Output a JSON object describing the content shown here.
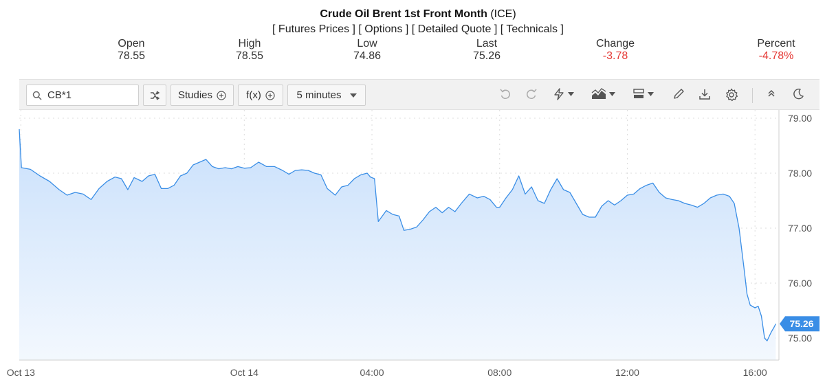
{
  "header": {
    "title": "Crude Oil Brent 1st Front Month",
    "exchange": "(ICE)",
    "links": [
      "[ Futures Prices ]",
      "[ Options ]",
      "[ Detailed Quote ]",
      "[ Technicals ]"
    ]
  },
  "quote": {
    "open_label": "Open",
    "open": "78.55",
    "high_label": "High",
    "high": "78.55",
    "low_label": "Low",
    "low": "74.86",
    "last_label": "Last",
    "last": "75.26",
    "change_label": "Change",
    "change": "-3.78",
    "percent_label": "Percent",
    "percent": "-4.78%"
  },
  "toolbar": {
    "symbol": "CB*1",
    "studies_label": "Studies",
    "fx_label": "f(x)",
    "interval_label": "5 minutes"
  },
  "colors": {
    "line": "#3a8ee6",
    "fill_top": "#c9e0fb",
    "fill_bottom": "#f3f8fe",
    "negative": "#e53935",
    "last_badge": "#3a8ee6"
  },
  "chart_data": {
    "type": "area",
    "title": "",
    "xlabel": "",
    "ylabel": "",
    "ylim": [
      74.6,
      79.15
    ],
    "yticks": [
      "79.00",
      "78.00",
      "77.00",
      "76.00",
      "75.00"
    ],
    "ytick_values": [
      79,
      78,
      77,
      76,
      75
    ],
    "x_ticks": [
      "Oct 13",
      "Oct 14",
      "04:00",
      "08:00",
      "12:00",
      "16:00"
    ],
    "x_tick_hours": [
      -7.0,
      0.0,
      4.0,
      8.0,
      12.0,
      16.0
    ],
    "x_range_hours": [
      -7.05,
      16.75
    ],
    "last_value": "75.26",
    "series": [
      {
        "name": "",
        "points": [
          [
            -7.05,
            78.8
          ],
          [
            -6.98,
            78.1
          ],
          [
            -6.7,
            78.07
          ],
          [
            -6.4,
            77.95
          ],
          [
            -6.1,
            77.85
          ],
          [
            -5.8,
            77.7
          ],
          [
            -5.55,
            77.6
          ],
          [
            -5.3,
            77.65
          ],
          [
            -5.05,
            77.62
          ],
          [
            -4.8,
            77.52
          ],
          [
            -4.55,
            77.72
          ],
          [
            -4.3,
            77.85
          ],
          [
            -4.05,
            77.93
          ],
          [
            -3.85,
            77.9
          ],
          [
            -3.65,
            77.7
          ],
          [
            -3.45,
            77.92
          ],
          [
            -3.2,
            77.85
          ],
          [
            -3.0,
            77.95
          ],
          [
            -2.8,
            77.98
          ],
          [
            -2.6,
            77.72
          ],
          [
            -2.4,
            77.72
          ],
          [
            -2.2,
            77.78
          ],
          [
            -2.0,
            77.95
          ],
          [
            -1.8,
            78.0
          ],
          [
            -1.6,
            78.15
          ],
          [
            -1.4,
            78.2
          ],
          [
            -1.2,
            78.25
          ],
          [
            -1.0,
            78.12
          ],
          [
            -0.8,
            78.08
          ],
          [
            -0.6,
            78.1
          ],
          [
            -0.4,
            78.08
          ],
          [
            -0.2,
            78.12
          ],
          [
            0.0,
            78.09
          ],
          [
            0.2,
            78.1
          ],
          [
            0.45,
            78.2
          ],
          [
            0.7,
            78.12
          ],
          [
            0.95,
            78.12
          ],
          [
            1.2,
            78.05
          ],
          [
            1.4,
            77.98
          ],
          [
            1.6,
            78.05
          ],
          [
            1.8,
            78.06
          ],
          [
            2.0,
            78.05
          ],
          [
            2.2,
            78.0
          ],
          [
            2.4,
            77.97
          ],
          [
            2.6,
            77.72
          ],
          [
            2.85,
            77.6
          ],
          [
            3.05,
            77.75
          ],
          [
            3.25,
            77.78
          ],
          [
            3.45,
            77.9
          ],
          [
            3.65,
            77.97
          ],
          [
            3.85,
            78.0
          ],
          [
            3.95,
            77.93
          ],
          [
            4.08,
            77.9
          ],
          [
            4.2,
            77.12
          ],
          [
            4.45,
            77.32
          ],
          [
            4.65,
            77.25
          ],
          [
            4.85,
            77.22
          ],
          [
            5.0,
            76.96
          ],
          [
            5.2,
            76.98
          ],
          [
            5.4,
            77.02
          ],
          [
            5.6,
            77.15
          ],
          [
            5.8,
            77.3
          ],
          [
            6.0,
            77.38
          ],
          [
            6.2,
            77.28
          ],
          [
            6.4,
            77.38
          ],
          [
            6.6,
            77.3
          ],
          [
            6.8,
            77.45
          ],
          [
            7.05,
            77.62
          ],
          [
            7.3,
            77.55
          ],
          [
            7.5,
            77.58
          ],
          [
            7.7,
            77.52
          ],
          [
            7.9,
            77.38
          ],
          [
            8.0,
            77.38
          ],
          [
            8.2,
            77.55
          ],
          [
            8.4,
            77.7
          ],
          [
            8.6,
            77.95
          ],
          [
            8.8,
            77.62
          ],
          [
            9.0,
            77.75
          ],
          [
            9.2,
            77.5
          ],
          [
            9.4,
            77.45
          ],
          [
            9.6,
            77.7
          ],
          [
            9.8,
            77.9
          ],
          [
            10.0,
            77.7
          ],
          [
            10.2,
            77.65
          ],
          [
            10.4,
            77.45
          ],
          [
            10.6,
            77.25
          ],
          [
            10.8,
            77.2
          ],
          [
            11.0,
            77.2
          ],
          [
            11.2,
            77.4
          ],
          [
            11.4,
            77.5
          ],
          [
            11.6,
            77.42
          ],
          [
            11.8,
            77.5
          ],
          [
            12.0,
            77.6
          ],
          [
            12.2,
            77.62
          ],
          [
            12.4,
            77.72
          ],
          [
            12.6,
            77.78
          ],
          [
            12.8,
            77.82
          ],
          [
            13.0,
            77.65
          ],
          [
            13.2,
            77.55
          ],
          [
            13.4,
            77.52
          ],
          [
            13.6,
            77.5
          ],
          [
            13.8,
            77.45
          ],
          [
            14.0,
            77.42
          ],
          [
            14.2,
            77.38
          ],
          [
            14.4,
            77.45
          ],
          [
            14.6,
            77.55
          ],
          [
            14.8,
            77.6
          ],
          [
            15.0,
            77.62
          ],
          [
            15.2,
            77.58
          ],
          [
            15.35,
            77.45
          ],
          [
            15.5,
            77.0
          ],
          [
            15.65,
            76.3
          ],
          [
            15.75,
            75.8
          ],
          [
            15.85,
            75.6
          ],
          [
            16.0,
            75.55
          ],
          [
            16.1,
            75.58
          ],
          [
            16.2,
            75.4
          ],
          [
            16.3,
            75.0
          ],
          [
            16.38,
            74.95
          ],
          [
            16.5,
            75.1
          ],
          [
            16.6,
            75.2
          ],
          [
            16.65,
            75.26
          ]
        ]
      }
    ]
  }
}
